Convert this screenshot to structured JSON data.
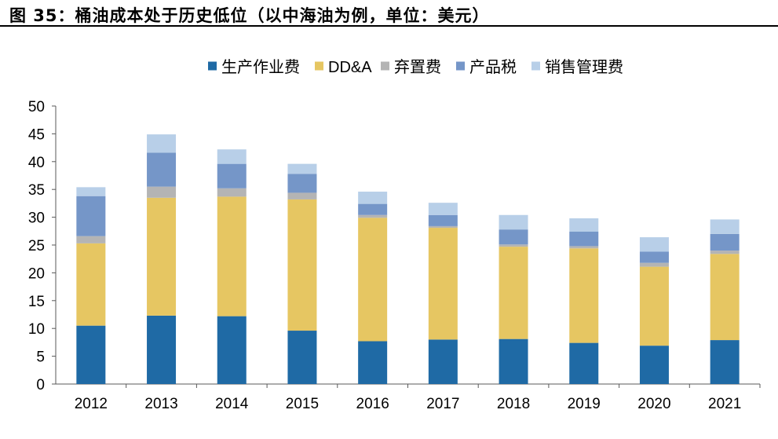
{
  "figure": {
    "title": "图 35：桶油成本处于历史低位（以中海油为例，单位：美元）"
  },
  "chart_data": {
    "type": "bar",
    "stacked": true,
    "categories": [
      "2012",
      "2013",
      "2014",
      "2015",
      "2016",
      "2017",
      "2018",
      "2019",
      "2020",
      "2021"
    ],
    "ylim": [
      0,
      50
    ],
    "yticks": [
      0,
      5,
      10,
      15,
      20,
      25,
      30,
      35,
      40,
      45,
      50
    ],
    "grid": false,
    "legend_position": "top-center",
    "series": [
      {
        "name": "生产作业费",
        "color": "#1f6aa5",
        "values": [
          10.5,
          12.3,
          12.2,
          9.6,
          7.7,
          8.0,
          8.1,
          7.4,
          6.9,
          7.9
        ]
      },
      {
        "name": "DD&A",
        "color": "#e6c662",
        "values": [
          14.8,
          21.2,
          21.5,
          23.6,
          22.2,
          20.1,
          16.6,
          17.0,
          14.2,
          15.5
        ]
      },
      {
        "name": "弃置费",
        "color": "#b4b4b4",
        "values": [
          1.3,
          2.0,
          1.5,
          1.2,
          0.5,
          0.3,
          0.4,
          0.4,
          0.7,
          0.6
        ]
      },
      {
        "name": "产品税",
        "color": "#7596c8",
        "values": [
          7.2,
          6.1,
          4.4,
          3.4,
          2.0,
          2.0,
          2.7,
          2.6,
          2.0,
          3.0
        ]
      },
      {
        "name": "销售管理费",
        "color": "#b8cfe8",
        "values": [
          1.6,
          3.3,
          2.6,
          1.8,
          2.2,
          2.2,
          2.6,
          2.4,
          2.6,
          2.6
        ]
      }
    ]
  }
}
